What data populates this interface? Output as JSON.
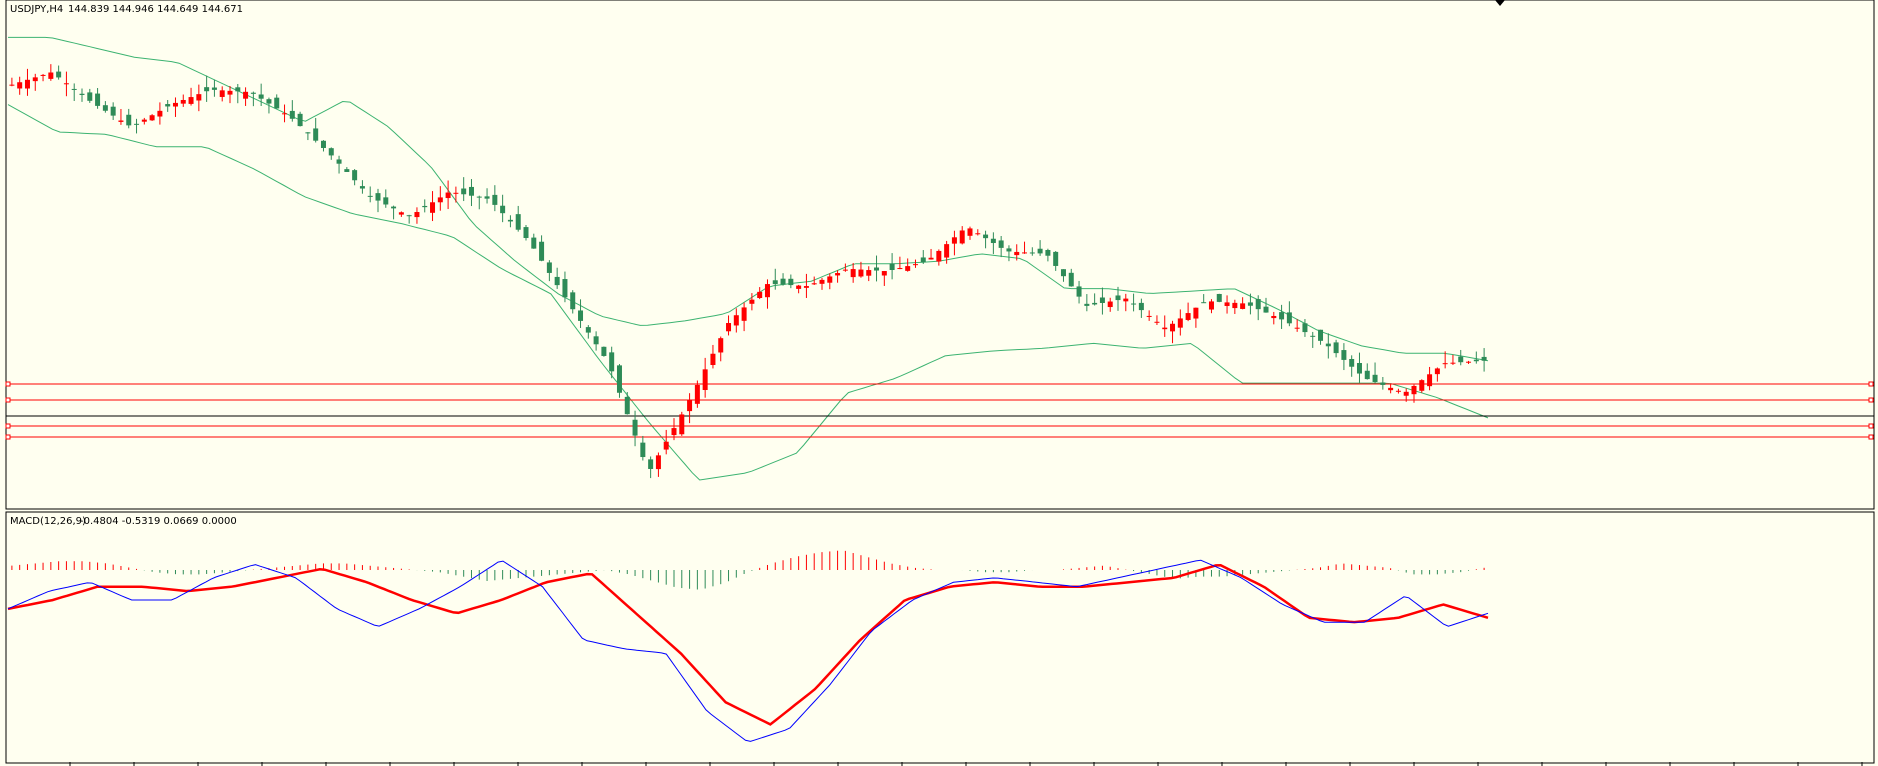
{
  "header": {
    "symbol": "USDJPY,H4",
    "ohlc": "144.839 144.946 144.649 144.671"
  },
  "macd_header": {
    "label": "MACD(12,26,9)",
    "values": "-0.4804 -0.5319 0.0669 0.0000"
  },
  "colors": {
    "background": "#fffff0",
    "bull_candle": "#ff0000",
    "bear_candle": "#2e8b57",
    "bands": "#3cb371",
    "level_lines": "#ff0000",
    "current_price_line": "#808080",
    "macd_line": "#0000ff",
    "signal_line": "#ff0000",
    "hist_positive": "#ff0000",
    "hist_negative": "#2e8b57"
  },
  "chart_data": [
    {
      "type": "candlestick",
      "title": "USDJPY,H4",
      "overlay": "Bollinger Bands",
      "series_shape": {
        "price": [
          150.4,
          150.9,
          149.7,
          148.7,
          149.6,
          150.2,
          150.1,
          149.1,
          147.6,
          145.9,
          145.1,
          146.1,
          145.8,
          144.1,
          141.6,
          139.2,
          134.8,
          137.6,
          140.8,
          142.4,
          142.3,
          143.0,
          142.9,
          143.3,
          144.7,
          143.7,
          143.6,
          141.5,
          141.8,
          140.6,
          141.7,
          141.6,
          140.9,
          140.0,
          138.6,
          138.0,
          139.2,
          139.3
        ],
        "bb_upper": [
          152.3,
          152.3,
          151.9,
          151.5,
          151.3,
          150.5,
          149.7,
          148.9,
          149.8,
          148.7,
          147.1,
          144.8,
          143.3,
          142.0,
          141.1,
          140.7,
          140.9,
          141.2,
          142.3,
          142.5,
          143.2,
          143.2,
          143.3,
          143.6,
          143.4,
          142.2,
          142.2,
          142.0,
          142.1,
          142.2,
          141.4,
          140.5,
          139.9,
          139.6,
          139.6,
          139.3
        ],
        "bb_lower": [
          149.6,
          148.5,
          148.4,
          147.9,
          147.9,
          147.0,
          145.9,
          145.2,
          144.8,
          144.3,
          143.0,
          142.0,
          139.3,
          136.8,
          134.5,
          134.8,
          135.6,
          138.0,
          138.6,
          139.5,
          139.7,
          139.8,
          140.0,
          139.8,
          140.0,
          138.4,
          138.4,
          138.4,
          138.4,
          137.8,
          137.0
        ]
      },
      "horizontal_levels": 5,
      "current_price": 138.3
    },
    {
      "type": "macd",
      "title": "MACD(12,26,9)",
      "macd_line": [
        -0.2,
        0.2,
        0.4,
        0.0,
        0.0,
        0.5,
        0.8,
        0.5,
        -0.2,
        -0.6,
        -0.2,
        0.3,
        0.9,
        0.3,
        -0.9,
        -1.1,
        -1.2,
        -2.5,
        -3.2,
        -2.9,
        -1.9,
        -0.7,
        0.0,
        0.4,
        0.5,
        0.4,
        0.3,
        0.5,
        0.7,
        0.9,
        0.5,
        -0.1,
        -0.5,
        -0.5,
        0.1,
        -0.6,
        -0.3
      ],
      "signal_line": [
        -0.2,
        0.0,
        0.3,
        0.3,
        0.2,
        0.3,
        0.5,
        0.7,
        0.4,
        0.0,
        -0.3,
        0.0,
        0.4,
        0.6,
        -0.3,
        -1.2,
        -2.3,
        -2.8,
        -2.0,
        -0.9,
        0.0,
        0.3,
        0.4,
        0.3,
        0.3,
        0.4,
        0.5,
        0.8,
        0.3,
        -0.4,
        -0.5,
        -0.4,
        -0.1,
        -0.4
      ],
      "histogram": [
        0.2,
        0.3,
        0.4,
        0.4,
        0.3,
        0.1,
        -0.1,
        -0.2,
        -0.2,
        -0.1,
        0.0,
        0.1,
        0.2,
        0.3,
        0.3,
        0.2,
        0.1,
        0.0,
        -0.1,
        -0.3,
        -0.5,
        -0.4,
        -0.3,
        -0.2,
        -0.1,
        0.0,
        -0.2,
        -0.5,
        -0.8,
        -0.9,
        -0.6,
        -0.1,
        0.3,
        0.6,
        0.8,
        0.9,
        0.6,
        0.3,
        0.1,
        0.0,
        0.0,
        -0.1,
        -0.1,
        0.0,
        0.0,
        0.1,
        0.2,
        0.0,
        -0.2,
        -0.4,
        -0.3,
        -0.3,
        -0.2,
        -0.1,
        0.0,
        0.1,
        0.3,
        0.2,
        0.1,
        -0.2,
        -0.2,
        -0.1,
        0.1
      ]
    }
  ]
}
